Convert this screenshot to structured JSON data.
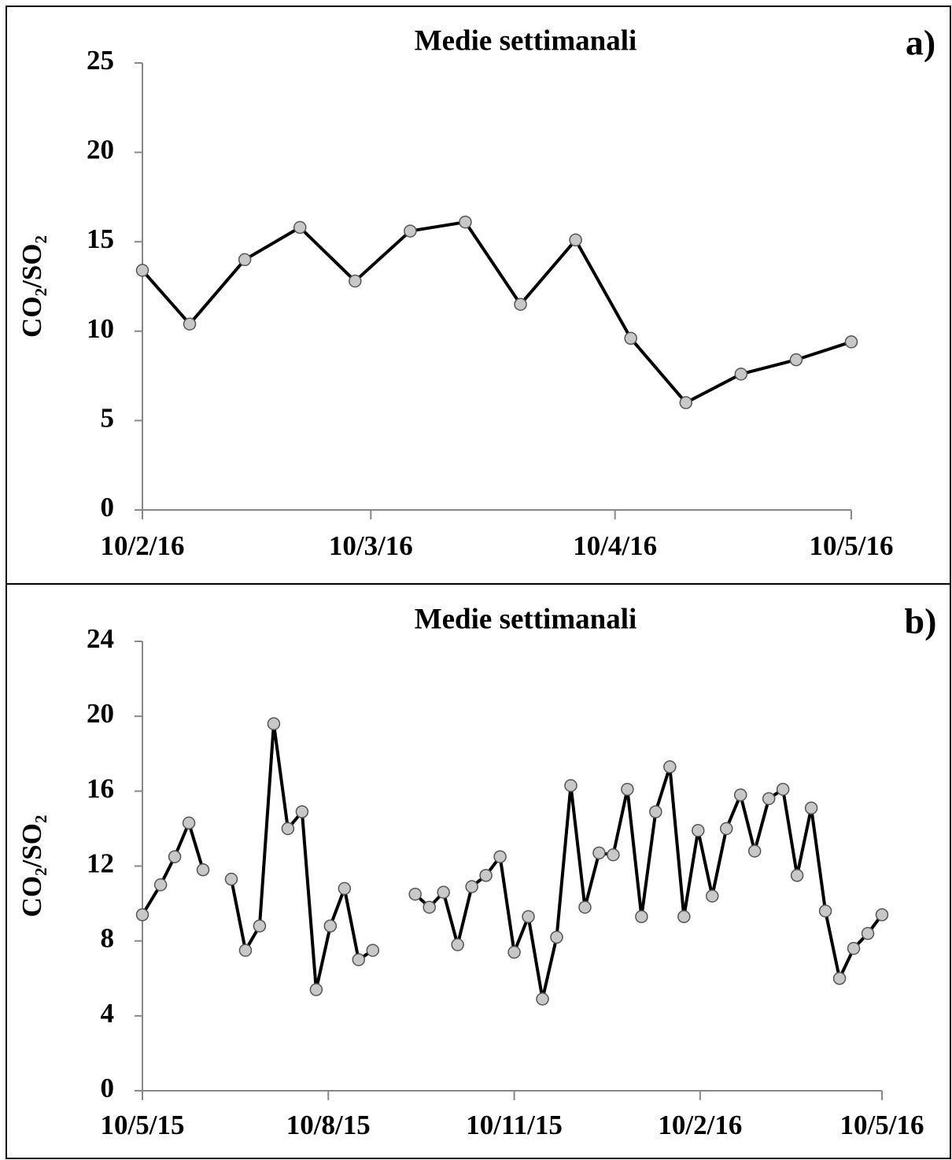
{
  "chart_data": [
    {
      "type": "line",
      "title": "Medie settimanali",
      "label": "a)",
      "y_label": "CO₂/SO₂",
      "x": [
        "2016-02-10",
        "2016-02-16",
        "2016-02-23",
        "2016-03-01",
        "2016-03-08",
        "2016-03-15",
        "2016-03-22",
        "2016-03-29",
        "2016-04-05",
        "2016-04-12",
        "2016-04-19",
        "2016-04-26",
        "2016-05-03",
        "2016-05-10"
      ],
      "series": [
        {
          "color": "#000000",
          "marker_color": "#c8c8c8",
          "values": [
            13.4,
            10.4,
            14.0,
            15.8,
            12.8,
            15.6,
            16.1,
            11.5,
            15.1,
            9.6,
            6.0,
            7.6,
            8.4,
            9.4
          ]
        }
      ],
      "xlim": [
        "2016-02-10",
        "2016-05-10"
      ],
      "xticks": [
        {
          "value": "2016-02-10",
          "label": "10/2/16"
        },
        {
          "value": "2016-03-10",
          "label": "10/3/16"
        },
        {
          "value": "2016-04-10",
          "label": "10/4/16"
        },
        {
          "value": "2016-05-10",
          "label": "10/5/16"
        }
      ],
      "ylim": [
        0,
        25
      ],
      "yticks": [
        0,
        5,
        10,
        15,
        20,
        25
      ],
      "grid": false
    },
    {
      "type": "line",
      "title": "Medie settimanali",
      "label": "b)",
      "y_label": "CO₂/SO₂",
      "x": [
        "2015-05-10",
        "2015-05-19",
        "2015-05-26",
        "2015-06-02",
        "2015-06-09",
        "2015-06-16",
        "2015-06-23",
        "2015-06-30",
        "2015-07-07",
        "2015-07-14",
        "2015-07-21",
        "2015-07-28",
        "2015-08-04",
        "2015-08-11",
        "2015-08-18",
        "2015-08-25",
        "2015-09-01",
        "2015-09-08",
        "2015-09-15",
        "2015-09-22",
        "2015-09-29",
        "2015-10-06",
        "2015-10-13",
        "2015-10-20",
        "2015-10-27",
        "2015-11-03",
        "2015-11-10",
        "2015-11-17",
        "2015-11-24",
        "2015-12-01",
        "2015-12-08",
        "2015-12-15",
        "2015-12-22",
        "2015-12-29",
        "2016-01-05",
        "2016-01-12",
        "2016-01-19",
        "2016-01-26",
        "2016-02-02",
        "2016-02-09",
        "2016-02-16",
        "2016-02-23",
        "2016-03-01",
        "2016-03-08",
        "2016-03-15",
        "2016-03-22",
        "2016-03-29",
        "2016-04-05",
        "2016-04-12",
        "2016-04-19",
        "2016-04-26",
        "2016-05-03",
        "2016-05-10"
      ],
      "series": [
        {
          "color": "#000000",
          "marker_color": "#c8c8c8",
          "values": [
            9.4,
            11.0,
            12.5,
            14.3,
            11.8,
            null,
            11.3,
            7.5,
            8.8,
            19.6,
            14.0,
            14.9,
            5.4,
            8.8,
            10.8,
            7.0,
            7.5,
            null,
            null,
            10.5,
            9.8,
            10.6,
            7.8,
            10.9,
            11.5,
            12.5,
            7.4,
            9.3,
            4.9,
            8.2,
            16.3,
            9.8,
            12.7,
            12.6,
            16.1,
            9.3,
            14.9,
            17.3,
            9.3,
            13.9,
            10.4,
            14.0,
            15.8,
            12.8,
            15.6,
            16.1,
            11.5,
            15.1,
            9.6,
            6.0,
            7.6,
            8.4,
            9.4
          ]
        }
      ],
      "xlim": [
        "2015-05-10",
        "2016-05-10"
      ],
      "xticks": [
        {
          "value": "2015-05-10",
          "label": "10/5/15"
        },
        {
          "value": "2015-08-10",
          "label": "10/8/15"
        },
        {
          "value": "2015-11-10",
          "label": "10/11/15"
        },
        {
          "value": "2016-02-10",
          "label": "10/2/16"
        },
        {
          "value": "2016-05-10",
          "label": "10/5/16"
        }
      ],
      "ylim": [
        0,
        24
      ],
      "yticks": [
        0,
        4,
        8,
        12,
        16,
        20,
        24
      ],
      "grid": false
    }
  ]
}
